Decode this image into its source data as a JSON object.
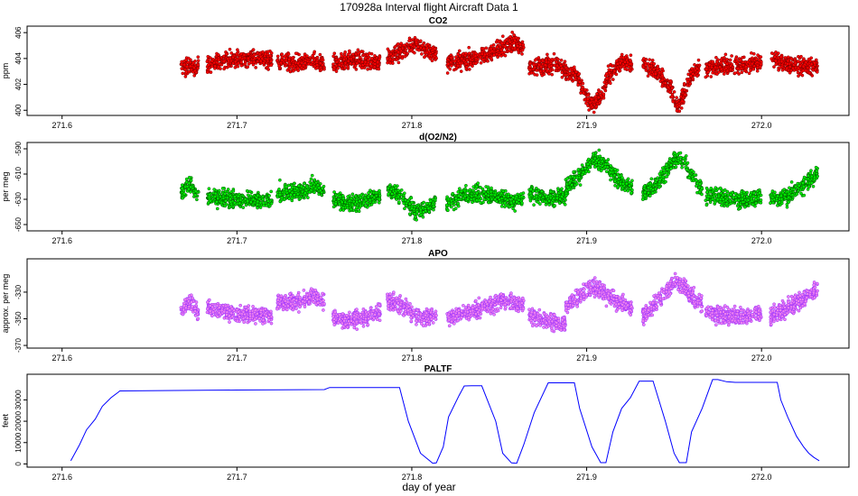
{
  "figure": {
    "title": "170928a   Interval flight Aircraft Data 1",
    "xlabel": "day of year"
  },
  "chart_data": [
    {
      "type": "scatter",
      "title": "CO2",
      "ylabel": "ppm",
      "xlim": [
        271.58,
        272.05
      ],
      "ylim": [
        399.6,
        406.5
      ],
      "xticks": [
        271.6,
        271.7,
        271.8,
        271.9,
        272.0
      ],
      "xtick_labels": [
        "271.6",
        "271.7",
        "271.8",
        "271.9",
        "272.0"
      ],
      "yticks": [
        400,
        402,
        404,
        406
      ],
      "ytick_labels": [
        "400",
        "402",
        "404",
        "406"
      ],
      "color_fill": "#ff0000",
      "color_edge": "#7a0000",
      "series": [
        {
          "segments": [
            {
              "x": [
                271.668,
                271.678
              ],
              "y": [
                403.3,
                403.4
              ]
            },
            {
              "x": [
                271.683,
                271.697,
                271.712,
                271.72
              ],
              "y": [
                403.6,
                403.9,
                404.1,
                403.9
              ]
            },
            {
              "x": [
                271.723,
                271.735,
                271.745,
                271.75
              ],
              "y": [
                403.7,
                403.6,
                403.8,
                403.6
              ]
            },
            {
              "x": [
                271.755,
                271.765,
                271.775,
                271.782
              ],
              "y": [
                403.6,
                403.9,
                403.9,
                403.6
              ]
            },
            {
              "x": [
                271.786,
                271.795,
                271.802,
                271.808,
                271.814
              ],
              "y": [
                404.0,
                404.7,
                405.1,
                404.7,
                404.3
              ]
            },
            {
              "x": [
                271.82,
                271.835,
                271.85,
                271.858,
                271.864
              ],
              "y": [
                403.6,
                404.0,
                404.7,
                405.3,
                404.7
              ]
            },
            {
              "x": [
                271.867,
                271.875,
                271.883,
                271.888
              ],
              "y": [
                403.3,
                403.4,
                403.5,
                403.2
              ]
            },
            {
              "x": [
                271.888,
                271.895,
                271.9,
                271.904,
                271.908,
                271.913,
                271.92,
                271.926
              ],
              "y": [
                403.0,
                402.5,
                401.0,
                400.5,
                401.0,
                402.8,
                403.8,
                403.5
              ]
            },
            {
              "x": [
                271.932,
                271.94,
                271.948,
                271.952,
                271.956,
                271.96,
                271.965
              ],
              "y": [
                403.6,
                403.0,
                401.8,
                400.3,
                401.2,
                402.8,
                403.4
              ]
            },
            {
              "x": [
                271.968,
                271.98,
                271.992,
                272.0
              ],
              "y": [
                403.2,
                403.4,
                403.5,
                403.8
              ]
            },
            {
              "x": [
                272.005,
                272.015,
                272.025,
                272.032
              ],
              "y": [
                404.0,
                403.6,
                403.4,
                403.4
              ]
            }
          ]
        }
      ]
    },
    {
      "type": "scatter",
      "title": "d(O2/N2)",
      "ylabel": "per meg",
      "xlim": [
        271.58,
        272.05
      ],
      "ylim": [
        -655,
        -585
      ],
      "xticks": [
        271.6,
        271.7,
        271.8,
        271.9,
        272.0
      ],
      "xtick_labels": [
        "271.6",
        "271.7",
        "271.8",
        "271.9",
        "272.0"
      ],
      "yticks": [
        -650,
        -630,
        -610,
        -590
      ],
      "ytick_labels": [
        "-650",
        "-630",
        "-610",
        "-590"
      ],
      "color_fill": "#00ee00",
      "color_edge": "#005500",
      "series": [
        {
          "segments": [
            {
              "x": [
                271.668,
                271.673,
                271.678
              ],
              "y": [
                -625,
                -618,
                -628
              ]
            },
            {
              "x": [
                271.683,
                271.7,
                271.72
              ],
              "y": [
                -628,
                -630,
                -631
              ]
            },
            {
              "x": [
                271.723,
                271.735,
                271.745,
                271.75
              ],
              "y": [
                -624,
                -624,
                -620,
                -624
              ]
            },
            {
              "x": [
                271.755,
                271.765,
                271.775,
                271.782
              ],
              "y": [
                -632,
                -633,
                -630,
                -627
              ]
            },
            {
              "x": [
                271.786,
                271.795,
                271.802,
                271.808,
                271.814
              ],
              "y": [
                -623,
                -628,
                -640,
                -638,
                -632
              ]
            },
            {
              "x": [
                271.82,
                271.83,
                271.84,
                271.852,
                271.858,
                271.864
              ],
              "y": [
                -633,
                -627,
                -626,
                -628,
                -632,
                -630
              ]
            },
            {
              "x": [
                271.867,
                271.877,
                271.888
              ],
              "y": [
                -625,
                -629,
                -628
              ]
            },
            {
              "x": [
                271.888,
                271.897,
                271.904,
                271.91,
                271.918,
                271.926
              ],
              "y": [
                -620,
                -610,
                -597,
                -602,
                -615,
                -622
              ]
            },
            {
              "x": [
                271.932,
                271.942,
                271.95,
                271.956,
                271.962,
                271.966
              ],
              "y": [
                -627,
                -615,
                -598,
                -601,
                -615,
                -622
              ]
            },
            {
              "x": [
                271.968,
                271.98,
                271.992,
                272.0
              ],
              "y": [
                -627,
                -629,
                -630,
                -627
              ]
            },
            {
              "x": [
                272.005,
                272.015,
                272.025,
                272.032
              ],
              "y": [
                -631,
                -627,
                -618,
                -610
              ]
            }
          ]
        }
      ]
    },
    {
      "type": "scatter",
      "title": "APO",
      "ylabel": "approx. per meg",
      "xlim": [
        271.58,
        272.05
      ],
      "ylim": [
        -372,
        -305
      ],
      "xticks": [
        271.6,
        271.7,
        271.8,
        271.9,
        272.0
      ],
      "xtick_labels": [
        "271.6",
        "271.7",
        "271.8",
        "271.9",
        "272.0"
      ],
      "yticks": [
        -370,
        -350,
        -330
      ],
      "ytick_labels": [
        "-370",
        "-350",
        "-330"
      ],
      "color_fill": "#ee82ee",
      "color_edge": "#9b30ff",
      "series": [
        {
          "segments": [
            {
              "x": [
                271.668,
                271.673,
                271.678
              ],
              "y": [
                -343,
                -336,
                -345
              ]
            },
            {
              "x": [
                271.683,
                271.7,
                271.72
              ],
              "y": [
                -342,
                -346,
                -348
              ]
            },
            {
              "x": [
                271.723,
                271.735,
                271.745,
                271.75
              ],
              "y": [
                -338,
                -337,
                -333,
                -337
              ]
            },
            {
              "x": [
                271.755,
                271.765,
                271.775,
                271.782
              ],
              "y": [
                -350,
                -351,
                -348,
                -345
              ]
            },
            {
              "x": [
                271.786,
                271.795,
                271.802,
                271.808,
                271.814
              ],
              "y": [
                -337,
                -340,
                -348,
                -350,
                -348
              ]
            },
            {
              "x": [
                271.82,
                271.83,
                271.84,
                271.852,
                271.858,
                271.864
              ],
              "y": [
                -350,
                -345,
                -342,
                -336,
                -338,
                -340
              ]
            },
            {
              "x": [
                271.867,
                271.877,
                271.888
              ],
              "y": [
                -347,
                -352,
                -353
              ]
            },
            {
              "x": [
                271.888,
                271.897,
                271.904,
                271.91,
                271.918,
                271.926
              ],
              "y": [
                -340,
                -332,
                -326,
                -330,
                -338,
                -342
              ]
            },
            {
              "x": [
                271.932,
                271.942,
                271.95,
                271.956,
                271.962,
                271.966
              ],
              "y": [
                -347,
                -335,
                -323,
                -326,
                -336,
                -340
              ]
            },
            {
              "x": [
                271.968,
                271.98,
                271.992,
                272.0
              ],
              "y": [
                -345,
                -348,
                -348,
                -345
              ]
            },
            {
              "x": [
                272.005,
                272.015,
                272.025,
                272.032
              ],
              "y": [
                -348,
                -342,
                -335,
                -327
              ]
            }
          ]
        }
      ]
    },
    {
      "type": "line",
      "title": "PALTF",
      "ylabel": "feet",
      "xlim": [
        271.58,
        272.05
      ],
      "ylim": [
        -1500,
        42000
      ],
      "xticks": [
        271.6,
        271.7,
        271.8,
        271.9,
        272.0
      ],
      "xtick_labels": [
        "271.6",
        "271.7",
        "271.8",
        "271.9",
        "272.0"
      ],
      "yticks": [
        0,
        10000,
        20000,
        30000
      ],
      "ytick_labels": [
        "0",
        "10000",
        "20000",
        "30000"
      ],
      "color": "#0000ff",
      "series": [
        {
          "x": [
            271.605,
            271.61,
            271.614,
            271.619,
            271.623,
            271.628,
            271.632,
            271.633,
            271.7,
            271.75,
            271.753,
            271.793,
            271.798,
            271.805,
            271.812,
            271.814,
            271.818,
            271.821,
            271.824,
            271.827,
            271.83,
            271.834,
            271.84,
            271.848,
            271.852,
            271.857,
            271.86,
            271.864,
            271.868,
            271.87,
            271.878,
            271.893,
            271.896,
            271.903,
            271.908,
            271.911,
            271.915,
            271.92,
            271.925,
            271.93,
            271.938,
            271.945,
            271.95,
            271.953,
            271.957,
            271.96,
            271.966,
            271.972,
            271.975,
            271.98,
            271.985,
            272.009,
            272.011,
            272.015,
            272.02,
            272.024,
            272.027,
            272.03,
            272.033
          ],
          "y": [
            1500,
            9000,
            16000,
            21000,
            27000,
            31000,
            33500,
            34200,
            34600,
            34800,
            35800,
            35800,
            20000,
            5000,
            300,
            500,
            8000,
            22000,
            27000,
            32000,
            36500,
            36600,
            36600,
            20000,
            5000,
            500,
            300,
            9000,
            19000,
            24000,
            38000,
            38000,
            26000,
            8000,
            600,
            600,
            15000,
            26000,
            31000,
            38800,
            38800,
            20000,
            5000,
            600,
            600,
            15000,
            26000,
            39500,
            39500,
            38500,
            38200,
            38200,
            30000,
            22000,
            13000,
            8000,
            5000,
            3000,
            1500
          ]
        }
      ]
    }
  ]
}
